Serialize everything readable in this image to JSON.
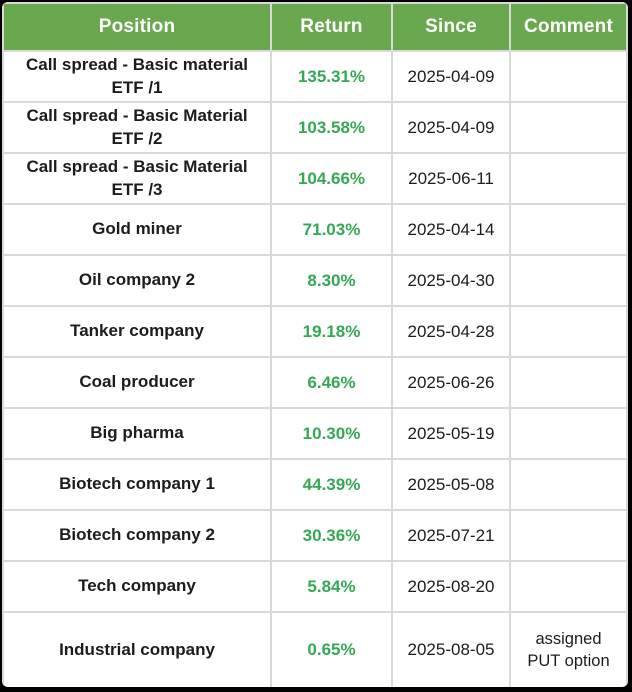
{
  "frame": {
    "border_color": "#000000",
    "background": "#ffffff"
  },
  "table": {
    "header_bg": "#6aa84f",
    "header_text_color": "#ffffff",
    "return_text_color": "#34a853",
    "grid_color": "#d9d9d9",
    "columns": [
      {
        "key": "position",
        "label": "Position"
      },
      {
        "key": "return",
        "label": "Return"
      },
      {
        "key": "since",
        "label": "Since"
      },
      {
        "key": "comment",
        "label": "Comment"
      }
    ],
    "rows": [
      {
        "position": "Call spread - Basic material ETF /1",
        "return": "135.31%",
        "since": "2025-04-09",
        "comment": ""
      },
      {
        "position": "Call spread - Basic Material ETF /2",
        "return": "103.58%",
        "since": "2025-04-09",
        "comment": ""
      },
      {
        "position": "Call spread - Basic Material ETF /3",
        "return": "104.66%",
        "since": "2025-06-11",
        "comment": ""
      },
      {
        "position": "Gold miner",
        "return": "71.03%",
        "since": "2025-04-14",
        "comment": ""
      },
      {
        "position": "Oil company 2",
        "return": "8.30%",
        "since": "2025-04-30",
        "comment": ""
      },
      {
        "position": "Tanker company",
        "return": "19.18%",
        "since": "2025-04-28",
        "comment": ""
      },
      {
        "position": "Coal producer",
        "return": "6.46%",
        "since": "2025-06-26",
        "comment": ""
      },
      {
        "position": "Big pharma",
        "return": "10.30%",
        "since": "2025-05-19",
        "comment": ""
      },
      {
        "position": "Biotech company 1",
        "return": "44.39%",
        "since": "2025-05-08",
        "comment": ""
      },
      {
        "position": "Biotech company 2",
        "return": "30.36%",
        "since": "2025-07-21",
        "comment": ""
      },
      {
        "position": "Tech company",
        "return": "5.84%",
        "since": "2025-08-20",
        "comment": ""
      },
      {
        "position": "Industrial company",
        "return": "0.65%",
        "since": "2025-08-05",
        "comment": "assigned\nPUT option"
      }
    ]
  }
}
